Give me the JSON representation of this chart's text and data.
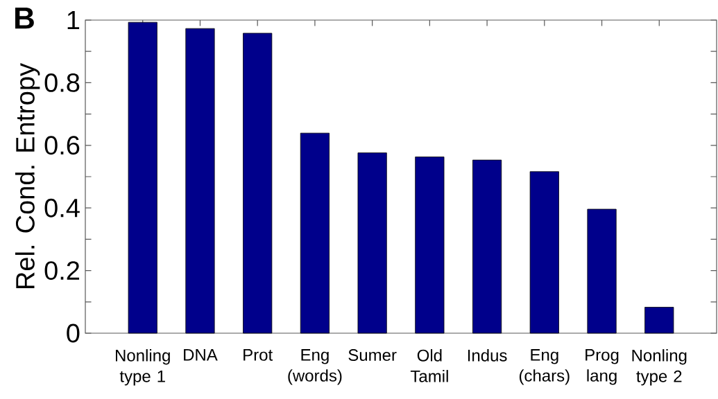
{
  "chart_data": {
    "type": "bar",
    "annotations": [
      "B"
    ],
    "ylabel": "Rel. Cond. Entropy",
    "categories": [
      "Nonling type 1",
      "DNA",
      "Prot",
      "Eng (words)",
      "Sumer",
      "Old Tamil",
      "Indus",
      "Eng (chars)",
      "Prog lang",
      "Nonling type 2"
    ],
    "values": [
      0.993,
      0.973,
      0.958,
      0.639,
      0.576,
      0.563,
      0.553,
      0.516,
      0.396,
      0.083
    ],
    "color": "#00008b",
    "ylim": [
      0,
      1
    ],
    "yticks": [
      0,
      {
        "value": 0.1,
        "label": null
      },
      0.2,
      {
        "value": 0.3,
        "label": null
      },
      0.4,
      {
        "value": 0.5,
        "label": null
      },
      0.6,
      {
        "value": 0.7,
        "label": null
      },
      0.8,
      {
        "value": 0.9,
        "label": null
      },
      1
    ]
  }
}
